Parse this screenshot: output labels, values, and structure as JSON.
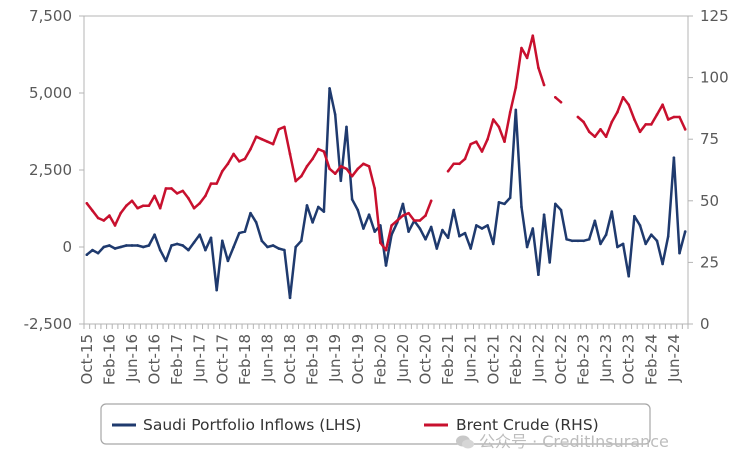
{
  "chart_data": {
    "type": "line",
    "x_tick_labels": [
      "Oct-15",
      "Feb-16",
      "Jun-16",
      "Oct-16",
      "Feb-17",
      "Jun-17",
      "Oct-17",
      "Feb-18",
      "Jun-18",
      "Oct-18",
      "Feb-19",
      "Jun-19",
      "Oct-19",
      "Feb-20",
      "Jun-20",
      "Oct-20",
      "Feb-21",
      "Jun-21",
      "Oct-21",
      "Feb-22",
      "Jun-22",
      "Oct-22",
      "Feb-23",
      "Jun-23",
      "Oct-23",
      "Feb-24",
      "Jun-24"
    ],
    "y_left": {
      "ticks": [
        -2500,
        0,
        2500,
        5000,
        7500
      ],
      "tick_labels": [
        "-2,500",
        "0",
        "2,500",
        "5,000",
        "7,500"
      ],
      "range": [
        -2500,
        7500
      ]
    },
    "y_right": {
      "ticks": [
        0,
        25,
        50,
        75,
        100,
        125
      ],
      "tick_labels": [
        "0",
        "25",
        "50",
        "75",
        "100",
        "125"
      ],
      "range": [
        0,
        125
      ]
    },
    "grid": false,
    "legend_position": "bottom",
    "series": [
      {
        "name": "Saudi Portfolio Inflows (LHS)",
        "axis": "left",
        "color": "#1f3a6e",
        "values": [
          -250,
          -100,
          -200,
          0,
          50,
          -50,
          0,
          50,
          50,
          50,
          0,
          50,
          400,
          -100,
          -450,
          50,
          100,
          50,
          -100,
          150,
          400,
          -100,
          300,
          -1400,
          200,
          -450,
          0,
          450,
          500,
          1100,
          800,
          200,
          0,
          50,
          -50,
          -100,
          -1650,
          0,
          200,
          1350,
          800,
          1300,
          1150,
          5150,
          4300,
          2150,
          3900,
          1550,
          1200,
          600,
          1050,
          500,
          700,
          -600,
          400,
          800,
          1400,
          500,
          850,
          600,
          250,
          650,
          -50,
          550,
          300,
          1200,
          350,
          450,
          -50,
          700,
          600,
          700,
          100,
          1450,
          1400,
          1600,
          4450,
          1300,
          0,
          600,
          -900,
          1050,
          -500,
          1400,
          1200,
          250,
          200,
          200,
          200,
          250,
          850,
          100,
          400,
          1150,
          0,
          100,
          -950,
          1000,
          700,
          100,
          400,
          200,
          -550,
          350,
          2900,
          -200,
          500
        ]
      },
      {
        "name": "Brent Crude (RHS)",
        "axis": "right",
        "color": "#c8102e",
        "values": [
          49,
          46,
          43,
          42,
          44,
          40,
          45,
          48,
          50,
          47,
          48,
          48,
          52,
          47,
          55,
          55,
          53,
          54,
          51,
          47,
          49,
          52,
          57,
          57,
          62,
          65,
          69,
          66,
          67,
          71,
          76,
          75,
          74,
          73,
          79,
          80,
          69,
          58,
          60,
          64,
          67,
          71,
          70,
          63,
          61,
          64,
          63,
          60,
          63,
          65,
          64,
          55,
          33,
          30,
          40,
          42,
          44,
          45,
          42,
          42,
          44,
          50,
          null,
          null,
          62,
          65,
          65,
          67,
          73,
          74,
          70,
          75,
          83,
          80,
          74,
          86,
          96,
          112,
          108,
          117,
          104,
          97,
          null,
          92,
          90,
          null,
          null,
          84,
          82,
          78,
          76,
          79,
          76,
          82,
          86,
          92,
          89,
          83,
          78,
          81,
          81,
          85,
          89,
          83,
          84,
          84,
          79
        ]
      }
    ]
  },
  "watermark": {
    "text": "公众号 · CreditInsurance"
  }
}
